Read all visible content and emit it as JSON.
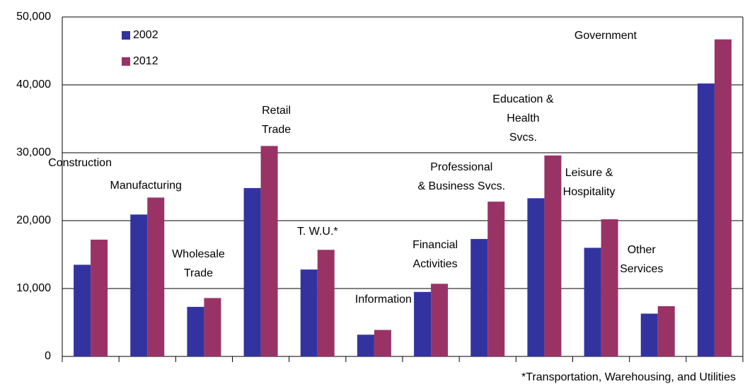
{
  "chart_data": {
    "type": "bar",
    "categories": [
      "Construction",
      "Manufacturing",
      "Wholesale\nTrade",
      "Retail\nTrade",
      "T. W.U.*",
      "Information",
      "Financial\nActivities",
      "Professional\n& Business Svcs.",
      "Education &\nHealth\nSvcs.",
      "Leisure &\nHospitality",
      "Other\nServices",
      "Government"
    ],
    "series": [
      {
        "name": "2002",
        "color": "#3333a0",
        "values": [
          13500,
          20900,
          7300,
          24800,
          12800,
          3200,
          9500,
          17300,
          23300,
          16000,
          6300,
          40200
        ]
      },
      {
        "name": "2012",
        "color": "#993366",
        "values": [
          17200,
          23400,
          8600,
          31000,
          15700,
          3900,
          10700,
          22800,
          29600,
          20200,
          7400,
          46700
        ]
      }
    ],
    "ylim": [
      0,
      50000
    ],
    "yticks": [
      0,
      {
        "value": 10000,
        "label": "10,000"
      },
      {
        "value": 20000,
        "label": "20,000"
      },
      {
        "value": 30000,
        "label": "30,000"
      },
      {
        "value": 40000,
        "label": "40,000"
      },
      {
        "value": 50000,
        "label": "50,000"
      }
    ],
    "grid": true,
    "annotations": [
      "*Transportation, Warehousing, and Utilities"
    ]
  }
}
